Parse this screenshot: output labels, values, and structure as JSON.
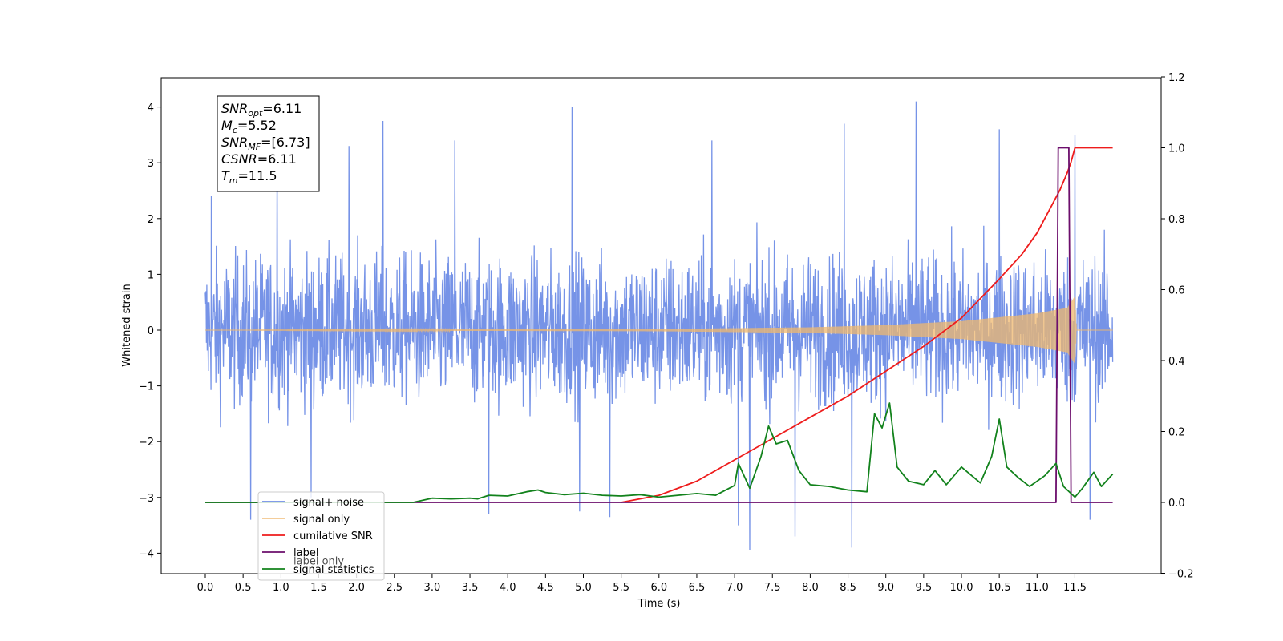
{
  "chart_data": {
    "type": "line",
    "title": "",
    "xlabel": "Time (s)",
    "ylabel": "Whitened strain",
    "y2label": "",
    "xlim": [
      -0.6,
      12.6
    ],
    "ylim": [
      -4.4,
      4.5
    ],
    "y2lim": [
      -0.2,
      1.2
    ],
    "x_ticks": [
      0.0,
      0.5,
      1.0,
      1.5,
      2.0,
      2.5,
      3.0,
      3.5,
      4.0,
      4.5,
      5.0,
      5.5,
      6.0,
      6.5,
      7.0,
      7.5,
      8.0,
      8.5,
      9.0,
      9.5,
      10.0,
      10.5,
      11.0,
      11.5
    ],
    "x_tick_labels": [
      "0.0",
      "0.5",
      "1.0",
      "1.5",
      "2.0",
      "2.5",
      "3.0",
      "3.5",
      "4.0",
      "4.5",
      "5.0",
      "5.5",
      "6.0",
      "6.5",
      "7.0",
      "7.5",
      "8.0",
      "8.5",
      "9.0",
      "9.5",
      "10.0",
      "10.5",
      "11.0",
      "11.5"
    ],
    "y_ticks": [
      -4,
      -3,
      -2,
      -1,
      0,
      1,
      2,
      3,
      4
    ],
    "y_tick_labels": [
      "−4",
      "−3",
      "−2",
      "−1",
      "0",
      "1",
      "2",
      "3",
      "4"
    ],
    "y2_ticks": [
      -0.2,
      0.0,
      0.2,
      0.4,
      0.6,
      0.8,
      1.0,
      1.2
    ],
    "y2_tick_labels": [
      "−0.2",
      "0.0",
      "0.2",
      "0.4",
      "0.6",
      "0.8",
      "1.0",
      "1.2"
    ],
    "grid": false,
    "legend_position": "lower-left",
    "annotation": {
      "lines": [
        {
          "base": "SNR",
          "sub": "opt",
          "value": "=6.11"
        },
        {
          "base": "M",
          "sub": "c",
          "value": "=5.52"
        },
        {
          "base": "SNR",
          "sub": "MF",
          "value": "=[6.73]"
        },
        {
          "base": "CSNR",
          "sub": "",
          "value": "=6.11"
        },
        {
          "base": "T",
          "sub": "m",
          "value": "=11.5"
        }
      ]
    },
    "series": [
      {
        "name": "signal+ noise",
        "axis": "left",
        "color": "#6f8de6",
        "style": "noise",
        "x_range": [
          0.0,
          12.0
        ],
        "typical_range": [
          -1.5,
          1.5
        ],
        "peaks": [
          {
            "x": 0.08,
            "y": 2.4
          },
          {
            "x": 0.6,
            "y": -3.4
          },
          {
            "x": 0.95,
            "y": 3.4
          },
          {
            "x": 1.4,
            "y": -3.0
          },
          {
            "x": 1.9,
            "y": 3.3
          },
          {
            "x": 2.35,
            "y": 3.75
          },
          {
            "x": 3.3,
            "y": 3.4
          },
          {
            "x": 3.75,
            "y": -3.3
          },
          {
            "x": 4.85,
            "y": 4.0
          },
          {
            "x": 4.95,
            "y": -3.25
          },
          {
            "x": 5.35,
            "y": -3.35
          },
          {
            "x": 6.7,
            "y": 3.4
          },
          {
            "x": 7.05,
            "y": -3.5
          },
          {
            "x": 7.2,
            "y": -3.95
          },
          {
            "x": 7.8,
            "y": -3.7
          },
          {
            "x": 8.45,
            "y": 3.7
          },
          {
            "x": 8.55,
            "y": -3.9
          },
          {
            "x": 9.4,
            "y": 4.1
          },
          {
            "x": 10.5,
            "y": 3.6
          },
          {
            "x": 11.5,
            "y": 3.5
          },
          {
            "x": 11.7,
            "y": -3.4
          }
        ]
      },
      {
        "name": "signal only",
        "axis": "left",
        "color": "#f0b86e",
        "style": "chirp",
        "x_range": [
          0.0,
          12.0
        ],
        "envelope": [
          [
            0.0,
            0.0
          ],
          [
            6.0,
            0.02
          ],
          [
            8.0,
            0.05
          ],
          [
            9.0,
            0.09
          ],
          [
            10.0,
            0.16
          ],
          [
            11.0,
            0.3
          ],
          [
            11.4,
            0.4
          ],
          [
            11.5,
            0.6
          ],
          [
            11.52,
            0.0
          ],
          [
            12.0,
            0.0
          ]
        ]
      },
      {
        "name": "cumilative SNR",
        "axis": "right",
        "color": "#ee1c1c",
        "style": "line",
        "x": [
          5.5,
          6.0,
          6.5,
          7.0,
          7.5,
          8.0,
          8.5,
          9.0,
          9.5,
          10.0,
          10.5,
          10.8,
          11.0,
          11.2,
          11.3,
          11.4,
          11.45,
          11.5,
          12.0
        ],
        "y": [
          0.0,
          0.02,
          0.06,
          0.12,
          0.18,
          0.24,
          0.3,
          0.37,
          0.44,
          0.52,
          0.63,
          0.7,
          0.76,
          0.84,
          0.88,
          0.93,
          0.96,
          1.0,
          1.0
        ]
      },
      {
        "name": "label",
        "axis": "right",
        "color": "#6c0e6c",
        "style": "step",
        "x": [
          0.0,
          11.25,
          11.28,
          11.42,
          11.45,
          12.0
        ],
        "y": [
          0.0,
          0.0,
          1.0,
          1.0,
          0.0,
          0.0
        ]
      },
      {
        "name": "label only",
        "axis": "right",
        "color": "#6c0e6c",
        "style": "hidden",
        "x": [],
        "y": []
      },
      {
        "name": "signal statistics",
        "axis": "right",
        "color": "#12821c",
        "style": "line",
        "x": [
          0.0,
          0.5,
          1.0,
          1.5,
          2.0,
          2.5,
          2.75,
          3.0,
          3.25,
          3.5,
          3.6,
          3.75,
          4.0,
          4.25,
          4.4,
          4.5,
          4.75,
          5.0,
          5.25,
          5.5,
          5.75,
          6.0,
          6.25,
          6.5,
          6.75,
          7.0,
          7.05,
          7.2,
          7.35,
          7.45,
          7.55,
          7.7,
          7.85,
          8.0,
          8.25,
          8.5,
          8.75,
          8.85,
          8.95,
          9.05,
          9.15,
          9.3,
          9.5,
          9.65,
          9.8,
          10.0,
          10.25,
          10.4,
          10.5,
          10.6,
          10.75,
          10.9,
          11.0,
          11.1,
          11.25,
          11.35,
          11.5,
          11.6,
          11.75,
          11.85,
          12.0
        ],
        "y": [
          0.0,
          0.0,
          0.0,
          0.0,
          0.0,
          0.0,
          0.0,
          0.012,
          0.01,
          0.012,
          0.01,
          0.02,
          0.018,
          0.03,
          0.035,
          0.028,
          0.022,
          0.026,
          0.02,
          0.018,
          0.022,
          0.015,
          0.02,
          0.025,
          0.02,
          0.048,
          0.11,
          0.04,
          0.13,
          0.215,
          0.165,
          0.175,
          0.09,
          0.05,
          0.045,
          0.035,
          0.03,
          0.25,
          0.21,
          0.28,
          0.1,
          0.06,
          0.05,
          0.09,
          0.05,
          0.1,
          0.055,
          0.13,
          0.235,
          0.1,
          0.07,
          0.045,
          0.06,
          0.075,
          0.11,
          0.045,
          0.015,
          0.04,
          0.085,
          0.045,
          0.08
        ]
      }
    ]
  }
}
